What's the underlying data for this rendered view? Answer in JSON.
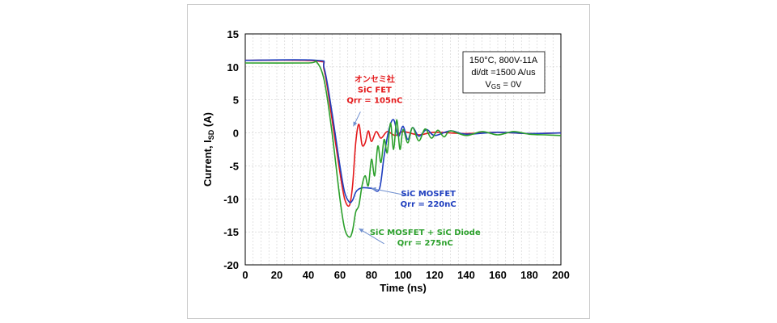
{
  "chart_data": {
    "type": "line",
    "title": "",
    "xlabel": "Time (ns)",
    "ylabel": {
      "main": "Current, I",
      "sub": "SD",
      "unit": " (A)"
    },
    "xlim": [
      0,
      200
    ],
    "ylim": [
      -20,
      15
    ],
    "x_ticks": [
      0,
      20,
      40,
      60,
      80,
      100,
      120,
      140,
      160,
      180,
      200
    ],
    "y_ticks": [
      15,
      10,
      5,
      0,
      -5,
      -10,
      -15,
      -20
    ],
    "grid": true,
    "conditions": {
      "line1": "150°C, 800V-11A",
      "line2": "di/dt =1500  A/us",
      "line3_main": "V",
      "line3_sub": "GS",
      "line3_rest": " = 0V"
    },
    "series": [
      {
        "color": "#e41a1c",
        "x": [
          0,
          45,
          50,
          55,
          60,
          63,
          66,
          68,
          70,
          72,
          74,
          76,
          78,
          80,
          83,
          86,
          90,
          95,
          100,
          110,
          120,
          140,
          160,
          180,
          200
        ],
        "y": [
          11,
          10.9,
          9.5,
          2,
          -6,
          -10,
          -11,
          -8,
          -1.5,
          1.3,
          -1.8,
          -1.5,
          0.3,
          -1.3,
          0.2,
          -0.8,
          0.2,
          -0.4,
          0.2,
          -0.3,
          0.1,
          -0.1,
          0.1,
          -0.1,
          0
        ]
      },
      {
        "color": "#1f3fbf",
        "x": [
          0,
          45,
          50,
          55,
          60,
          63,
          66,
          68,
          70,
          72,
          75,
          80,
          85,
          88,
          91,
          94,
          97,
          100,
          103,
          106,
          110,
          115,
          120,
          130,
          140,
          160,
          180,
          200
        ],
        "y": [
          11,
          11,
          9.8,
          3,
          -5,
          -9,
          -10.5,
          -10.2,
          -9,
          -8.5,
          -8.3,
          -8.4,
          -8.5,
          -3.5,
          0.5,
          2,
          -0.5,
          1,
          -1,
          0.8,
          -0.5,
          0.5,
          -0.4,
          0.3,
          -0.2,
          0.1,
          -0.1,
          0
        ]
      },
      {
        "color": "#2ca02c",
        "x": [
          0,
          40,
          45,
          50,
          55,
          60,
          63,
          66,
          68,
          70,
          72,
          74,
          76,
          78,
          80,
          82,
          84,
          86,
          88,
          90,
          92,
          94,
          96,
          98,
          100,
          103,
          106,
          110,
          114,
          118,
          122,
          126,
          130,
          140,
          150,
          160,
          170,
          180,
          190,
          200
        ],
        "y": [
          10.6,
          10.6,
          10.8,
          8,
          0,
          -10,
          -14.5,
          -15.8,
          -14.8,
          -12,
          -11,
          -8,
          -6.5,
          -8,
          -4,
          -6.5,
          -2,
          -4.5,
          -1,
          -3,
          1.5,
          -2.5,
          2,
          -2.5,
          0.5,
          -1.5,
          0.8,
          -1.2,
          0.6,
          -0.8,
          0.4,
          -0.6,
          0.3,
          -0.4,
          0.2,
          -0.3,
          0.2,
          -0.2,
          -0.3,
          -0.4
        ]
      }
    ],
    "annotations": [
      {
        "color": "#e41a1c",
        "lines": [
          "オンセミ社",
          "SiC FET",
          "Qrr = 105nC"
        ],
        "text_anchor": [
          82,
          7.7
        ],
        "arrow_from": [
          73,
          3.2
        ],
        "arrow_to": [
          68.5,
          1
        ]
      },
      {
        "color": "#1f3fbf",
        "lines": [
          "SiC MOSFET",
          "Qrr = 220nC"
        ],
        "text_anchor": [
          116,
          -9.6
        ],
        "arrow_from": [
          103,
          -9.5
        ],
        "arrow_to": [
          80,
          -8.4
        ]
      },
      {
        "color": "#2ca02c",
        "lines": [
          "SiC MOSFET + SiC Diode",
          "Qrr = 275nC"
        ],
        "text_anchor": [
          114,
          -15.5
        ],
        "arrow_from": [
          88,
          -16.8
        ],
        "arrow_to": [
          72,
          -14.5
        ]
      }
    ]
  }
}
